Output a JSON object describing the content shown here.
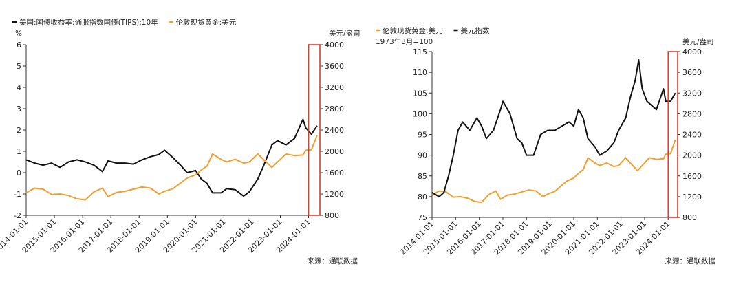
{
  "source_note": "来源：通联数据",
  "colors": {
    "black": "#111111",
    "orange": "#f0a030",
    "highlight": "#e03a2a",
    "axis": "#333333"
  },
  "chart_data": [
    {
      "type": "line",
      "legend_placement": "top-left",
      "grid": false,
      "series": [
        {
          "name": "美国:国债收益率:通胀指数国债(TIPS):10年",
          "axis": "left",
          "color": "#111111",
          "points": [
            [
              2014.0,
              0.6
            ],
            [
              2014.3,
              0.45
            ],
            [
              2014.6,
              0.35
            ],
            [
              2014.9,
              0.45
            ],
            [
              2015.2,
              0.25
            ],
            [
              2015.5,
              0.5
            ],
            [
              2015.8,
              0.6
            ],
            [
              2016.1,
              0.5
            ],
            [
              2016.4,
              0.35
            ],
            [
              2016.7,
              0.05
            ],
            [
              2016.9,
              0.55
            ],
            [
              2017.2,
              0.45
            ],
            [
              2017.5,
              0.45
            ],
            [
              2017.8,
              0.4
            ],
            [
              2018.1,
              0.6
            ],
            [
              2018.4,
              0.75
            ],
            [
              2018.7,
              0.85
            ],
            [
              2018.9,
              1.05
            ],
            [
              2019.2,
              0.7
            ],
            [
              2019.5,
              0.3
            ],
            [
              2019.7,
              0.0
            ],
            [
              2020.0,
              0.1
            ],
            [
              2020.2,
              -0.3
            ],
            [
              2020.4,
              -0.5
            ],
            [
              2020.6,
              -0.95
            ],
            [
              2020.9,
              -0.95
            ],
            [
              2021.1,
              -0.75
            ],
            [
              2021.4,
              -0.8
            ],
            [
              2021.7,
              -1.1
            ],
            [
              2021.9,
              -0.9
            ],
            [
              2022.2,
              -0.3
            ],
            [
              2022.4,
              0.3
            ],
            [
              2022.7,
              1.3
            ],
            [
              2022.9,
              1.5
            ],
            [
              2023.2,
              1.3
            ],
            [
              2023.5,
              1.6
            ],
            [
              2023.8,
              2.5
            ],
            [
              2023.9,
              2.1
            ],
            [
              2024.1,
              1.8
            ],
            [
              2024.3,
              2.2
            ]
          ]
        },
        {
          "name": "伦敦现货黄金:美元",
          "axis": "right",
          "color": "#f0a030",
          "points": [
            [
              2014.0,
              1220
            ],
            [
              2014.3,
              1310
            ],
            [
              2014.6,
              1290
            ],
            [
              2014.9,
              1190
            ],
            [
              2015.2,
              1200
            ],
            [
              2015.5,
              1170
            ],
            [
              2015.8,
              1110
            ],
            [
              2016.1,
              1090
            ],
            [
              2016.4,
              1240
            ],
            [
              2016.7,
              1310
            ],
            [
              2016.9,
              1150
            ],
            [
              2017.2,
              1230
            ],
            [
              2017.5,
              1250
            ],
            [
              2017.8,
              1290
            ],
            [
              2018.1,
              1330
            ],
            [
              2018.4,
              1310
            ],
            [
              2018.7,
              1200
            ],
            [
              2018.9,
              1250
            ],
            [
              2019.2,
              1300
            ],
            [
              2019.5,
              1420
            ],
            [
              2019.7,
              1500
            ],
            [
              2020.0,
              1560
            ],
            [
              2020.2,
              1650
            ],
            [
              2020.4,
              1720
            ],
            [
              2020.6,
              1950
            ],
            [
              2020.9,
              1850
            ],
            [
              2021.1,
              1800
            ],
            [
              2021.4,
              1850
            ],
            [
              2021.7,
              1780
            ],
            [
              2021.9,
              1800
            ],
            [
              2022.2,
              1950
            ],
            [
              2022.4,
              1850
            ],
            [
              2022.7,
              1700
            ],
            [
              2022.9,
              1800
            ],
            [
              2023.2,
              1950
            ],
            [
              2023.5,
              1920
            ],
            [
              2023.8,
              1930
            ],
            [
              2023.9,
              2020
            ],
            [
              2024.1,
              2030
            ],
            [
              2024.3,
              2300
            ]
          ]
        }
      ],
      "x_ticks": [
        "2014-01-01",
        "2015-01-01",
        "2016-01-01",
        "2017-01-01",
        "2018-01-01",
        "2019-01-01",
        "2020-01-01",
        "2021-01-01",
        "2022-01-01",
        "2023-01-01",
        "2024-01-01"
      ],
      "x_range": [
        2014.0,
        2024.4
      ],
      "y_left": {
        "label": "%",
        "range": [
          -2,
          6
        ],
        "ticks": [
          "-2",
          "-1",
          "0",
          "1",
          "2",
          "3",
          "4",
          "5",
          "6"
        ]
      },
      "y_right": {
        "label": "美元/盎司",
        "range": [
          800,
          4000
        ],
        "ticks": [
          "800",
          "1200",
          "1600",
          "2000",
          "2400",
          "2800",
          "3200",
          "3600",
          "4000"
        ]
      },
      "highlight_range": [
        2024.0,
        2024.4
      ]
    },
    {
      "type": "line",
      "legend_placement": "top-left",
      "grid": false,
      "series": [
        {
          "name": "伦敦现货黄金:美元",
          "axis": "right",
          "color": "#f0a030",
          "points": [
            [
              2014.0,
              1230
            ],
            [
              2014.3,
              1310
            ],
            [
              2014.6,
              1290
            ],
            [
              2014.9,
              1190
            ],
            [
              2015.2,
              1200
            ],
            [
              2015.5,
              1170
            ],
            [
              2015.8,
              1110
            ],
            [
              2016.1,
              1090
            ],
            [
              2016.4,
              1240
            ],
            [
              2016.7,
              1310
            ],
            [
              2016.9,
              1150
            ],
            [
              2017.2,
              1230
            ],
            [
              2017.5,
              1250
            ],
            [
              2017.8,
              1290
            ],
            [
              2018.1,
              1330
            ],
            [
              2018.4,
              1310
            ],
            [
              2018.7,
              1200
            ],
            [
              2018.9,
              1250
            ],
            [
              2019.2,
              1300
            ],
            [
              2019.5,
              1420
            ],
            [
              2019.7,
              1500
            ],
            [
              2020.0,
              1560
            ],
            [
              2020.2,
              1650
            ],
            [
              2020.4,
              1720
            ],
            [
              2020.6,
              1950
            ],
            [
              2020.9,
              1850
            ],
            [
              2021.1,
              1800
            ],
            [
              2021.4,
              1850
            ],
            [
              2021.7,
              1780
            ],
            [
              2021.9,
              1800
            ],
            [
              2022.2,
              1950
            ],
            [
              2022.4,
              1850
            ],
            [
              2022.7,
              1700
            ],
            [
              2022.9,
              1800
            ],
            [
              2023.2,
              1950
            ],
            [
              2023.5,
              1920
            ],
            [
              2023.8,
              1930
            ],
            [
              2023.9,
              2020
            ],
            [
              2024.1,
              2030
            ],
            [
              2024.3,
              2300
            ]
          ]
        },
        {
          "name": "美元指数",
          "axis": "left",
          "color": "#111111",
          "points": [
            [
              2014.0,
              81
            ],
            [
              2014.3,
              80
            ],
            [
              2014.5,
              81
            ],
            [
              2014.7,
              85
            ],
            [
              2014.9,
              90
            ],
            [
              2015.1,
              96
            ],
            [
              2015.3,
              98
            ],
            [
              2015.6,
              96
            ],
            [
              2015.9,
              99
            ],
            [
              2016.1,
              97
            ],
            [
              2016.3,
              94
            ],
            [
              2016.6,
              96
            ],
            [
              2016.9,
              101
            ],
            [
              2017.0,
              103
            ],
            [
              2017.3,
              100
            ],
            [
              2017.6,
              94
            ],
            [
              2017.8,
              93
            ],
            [
              2018.0,
              90
            ],
            [
              2018.3,
              90
            ],
            [
              2018.6,
              95
            ],
            [
              2018.9,
              96
            ],
            [
              2019.2,
              96
            ],
            [
              2019.5,
              97
            ],
            [
              2019.8,
              98
            ],
            [
              2020.0,
              97
            ],
            [
              2020.2,
              101
            ],
            [
              2020.4,
              99
            ],
            [
              2020.6,
              94
            ],
            [
              2020.9,
              92
            ],
            [
              2021.1,
              90
            ],
            [
              2021.4,
              91
            ],
            [
              2021.7,
              93
            ],
            [
              2021.9,
              96
            ],
            [
              2022.2,
              99
            ],
            [
              2022.4,
              104
            ],
            [
              2022.6,
              108
            ],
            [
              2022.75,
              113
            ],
            [
              2022.9,
              106
            ],
            [
              2023.1,
              103
            ],
            [
              2023.3,
              102
            ],
            [
              2023.5,
              101
            ],
            [
              2023.8,
              106
            ],
            [
              2023.9,
              103
            ],
            [
              2024.1,
              103
            ],
            [
              2024.3,
              105
            ]
          ]
        }
      ],
      "x_ticks": [
        "2014-01-01",
        "2015-01-01",
        "2016-01-01",
        "2017-01-01",
        "2018-01-01",
        "2019-01-01",
        "2020-01-01",
        "2021-01-01",
        "2022-01-01",
        "2023-01-01",
        "2024-01-01"
      ],
      "x_range": [
        2014.0,
        2024.4
      ],
      "y_left": {
        "label": "1973年3月=100",
        "range": [
          75,
          115
        ],
        "ticks": [
          "75",
          "80",
          "85",
          "90",
          "95",
          "100",
          "105",
          "110",
          "115"
        ]
      },
      "y_right": {
        "label": "美元/盎司",
        "range": [
          800,
          4000
        ],
        "ticks": [
          "800",
          "1200",
          "1600",
          "2000",
          "2400",
          "2800",
          "3200",
          "3600",
          "4000"
        ]
      },
      "highlight_range": [
        2024.0,
        2024.4
      ]
    }
  ]
}
